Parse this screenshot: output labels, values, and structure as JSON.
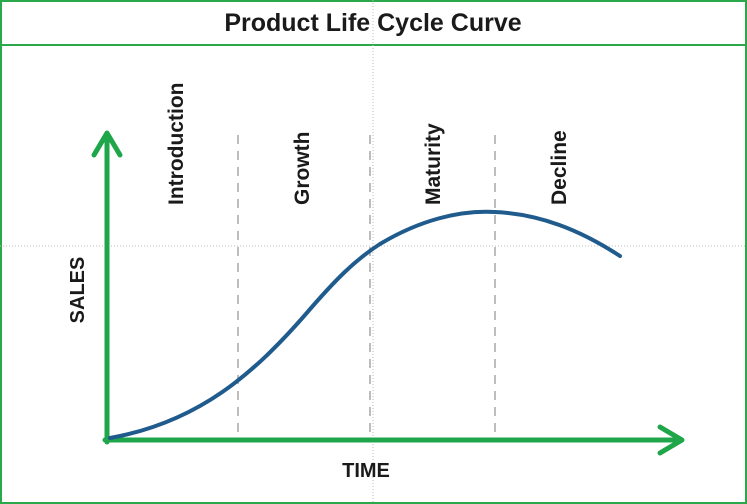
{
  "title": "Product Life Cycle Curve",
  "stages": [
    "Introduction",
    "Growth",
    "Maturity",
    "Decline"
  ],
  "y_axis_label": "SALES",
  "x_axis_label": "TIME"
}
